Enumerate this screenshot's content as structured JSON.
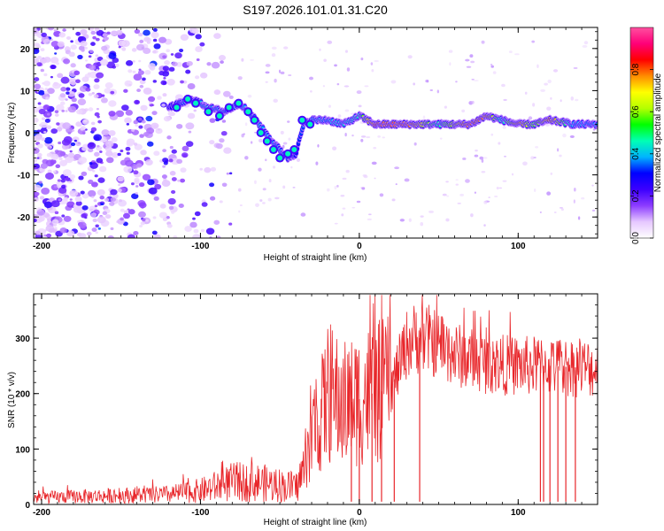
{
  "title": "S197.2026.101.01.31.C20",
  "chart_data": [
    {
      "type": "heatmap",
      "name": "spectrogram",
      "xlabel": "Height of straight line (km)",
      "ylabel": "Frequency (Hz)",
      "xlim": [
        -205,
        150
      ],
      "ylim": [
        -25,
        25
      ],
      "xticks": [
        -200,
        -100,
        0,
        100
      ],
      "xtick_labels": [
        "-200",
        "-100",
        "0",
        "100"
      ],
      "yticks": [
        -20,
        -10,
        0,
        10,
        20
      ],
      "ytick_labels": [
        "-20",
        "-10",
        "0",
        "10",
        "20"
      ],
      "ridge": {
        "x": [
          -120,
          -105,
          -95,
          -85,
          -75,
          -65,
          -55,
          -45,
          -40,
          -35,
          -30,
          -20,
          -10,
          0,
          10,
          30,
          50,
          70,
          80,
          90,
          100,
          110,
          120,
          135,
          150
        ],
        "y": [
          6,
          8,
          6,
          5,
          7,
          3,
          -2,
          -6,
          -5,
          2,
          3,
          3,
          2,
          4,
          2,
          2,
          2,
          2,
          4,
          3,
          2,
          2,
          3,
          2,
          2
        ],
        "amplitude": [
          0.3,
          0.45,
          0.5,
          0.4,
          0.45,
          0.45,
          0.45,
          0.4,
          0.35,
          0.4,
          0.45,
          0.45,
          0.5,
          0.55,
          0.9,
          0.9,
          0.55,
          0.9,
          0.85,
          0.5,
          0.85,
          0.6,
          0.85,
          0.45,
          0.45
        ]
      },
      "colorbar": {
        "label": "Normalized spectral amplitude",
        "range": [
          0,
          1
        ],
        "ticks": [
          0.0,
          0.2,
          0.4,
          0.6,
          0.8
        ],
        "tick_labels": [
          "0.0",
          "0.2",
          "0.4",
          "0.6",
          "0.8"
        ],
        "colors": [
          "#ffffff",
          "#e6c8ff",
          "#8c3cff",
          "#3c00ff",
          "#0000ff",
          "#00b4ff",
          "#00ffb4",
          "#00ff00",
          "#b4ff00",
          "#ffff00",
          "#ff8c00",
          "#ff0000",
          "#ff0078",
          "#ff50a0"
        ]
      }
    },
    {
      "type": "line",
      "name": "snr",
      "xlabel": "Height of straight line (km)",
      "ylabel": "SNR (10 * v/v)",
      "xlim": [
        -205,
        150
      ],
      "ylim": [
        0,
        380
      ],
      "xticks": [
        -200,
        -100,
        0,
        100
      ],
      "xtick_labels": [
        "-200",
        "-100",
        "0",
        "100"
      ],
      "yticks": [
        0,
        100,
        200,
        300
      ],
      "ytick_labels": [
        "0",
        "100",
        "200",
        "300"
      ],
      "series": [
        {
          "name": "SNR",
          "color": "#e8262a",
          "x": [
            -205,
            -180,
            -150,
            -120,
            -100,
            -80,
            -65,
            -50,
            -40,
            -35,
            -30,
            -25,
            -20,
            -15,
            -10,
            -5,
            0,
            5,
            10,
            20,
            30,
            35,
            40,
            50,
            60,
            80,
            100,
            120,
            150
          ],
          "y": [
            12,
            14,
            16,
            18,
            25,
            40,
            40,
            35,
            30,
            60,
            120,
            150,
            200,
            190,
            180,
            185,
            190,
            200,
            200,
            210,
            290,
            300,
            300,
            290,
            270,
            255,
            250,
            250,
            245
          ],
          "dropouts_x": [
            -5,
            0,
            8,
            14,
            22,
            38,
            114,
            116,
            120,
            125,
            130,
            136
          ]
        }
      ]
    }
  ]
}
